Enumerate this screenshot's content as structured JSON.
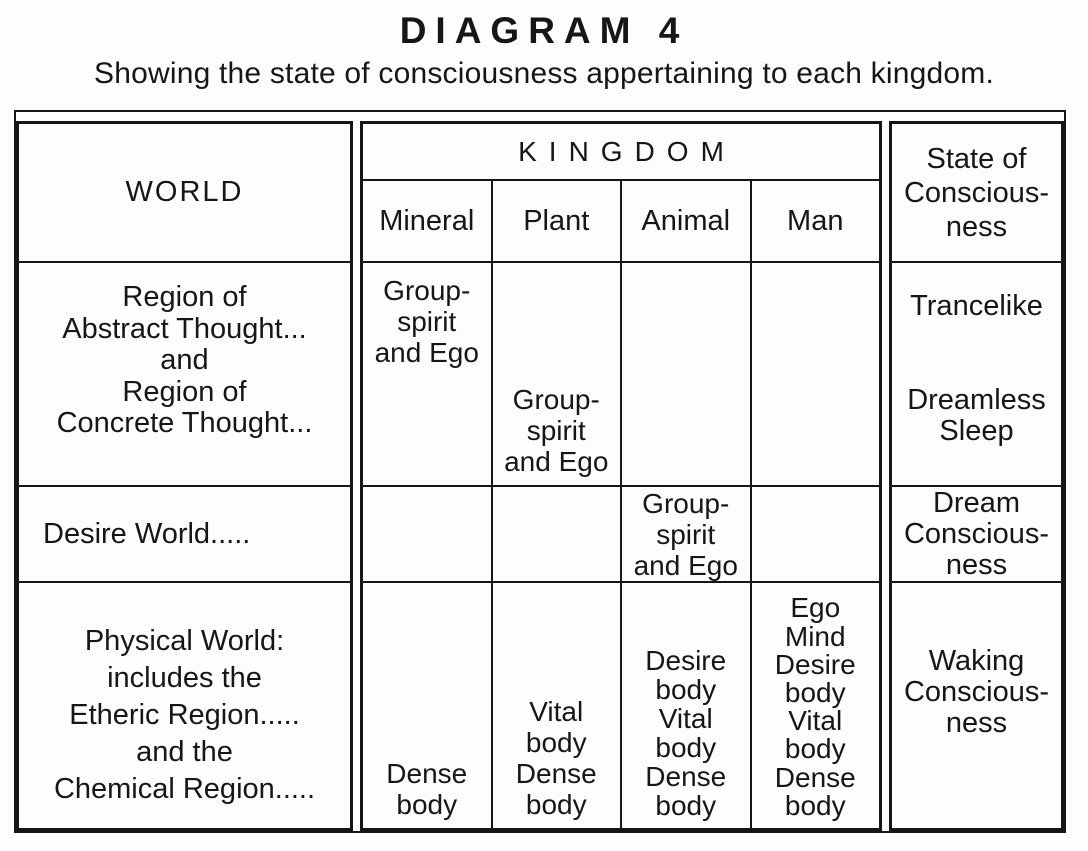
{
  "page": {
    "title": "DIAGRAM 4",
    "subtitle": "Showing the state of consciousness appertaining to each kingdom."
  },
  "table": {
    "world": {
      "header": "WORLD",
      "thought_regions_lines": [
        "Region of",
        "Abstract Thought...",
        "and",
        "Region of",
        "Concrete Thought..."
      ],
      "desire_world": "Desire World.....",
      "physical_world_lines": [
        "Physical World:",
        "includes the",
        "Etheric Region.....",
        "and the",
        "Chemical Region....."
      ]
    },
    "kingdom": {
      "header": "KINGDOM",
      "columns": [
        {
          "label": "Mineral",
          "thought_regions": [
            "Group-",
            "spirit",
            "and Ego"
          ],
          "desire_world": [],
          "physical_world": [
            "Dense",
            "body"
          ]
        },
        {
          "label": "Plant",
          "thought_regions": [
            "Group-",
            "spirit",
            "and Ego"
          ],
          "desire_world": [],
          "physical_world": [
            "Vital",
            "body",
            "Dense",
            "body"
          ]
        },
        {
          "label": "Animal",
          "thought_regions": [],
          "desire_world": [
            "Group-",
            "spirit",
            "and Ego"
          ],
          "physical_world": [
            "Desire",
            "body",
            "Vital",
            "body",
            "Dense",
            "body"
          ]
        },
        {
          "label": "Man",
          "thought_regions": [],
          "desire_world": [],
          "physical_world": [
            "Ego",
            "Mind",
            "Desire",
            "body",
            "Vital",
            "body",
            "Dense",
            "body"
          ]
        }
      ]
    },
    "state": {
      "header_lines": [
        "State of",
        "Conscious-",
        "ness"
      ],
      "trancelike": "Trancelike",
      "dreamless_lines": [
        "Dreamless",
        "Sleep"
      ],
      "dream_lines": [
        "Dream",
        "Conscious-",
        "ness"
      ],
      "waking_lines": [
        "Waking",
        "Conscious-",
        "ness"
      ]
    }
  }
}
